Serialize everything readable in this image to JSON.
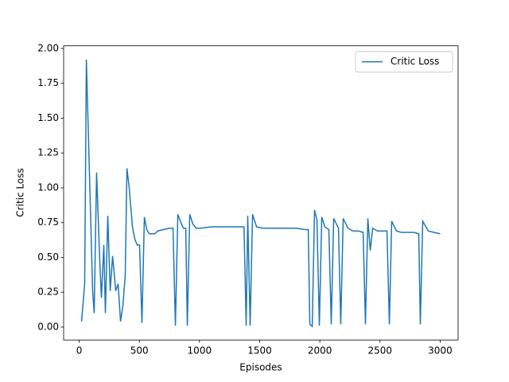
{
  "chart_data": {
    "type": "line",
    "xlabel": "Episodes",
    "ylabel": "Critic Loss",
    "x": [
      20,
      46,
      60,
      112,
      125,
      145,
      172,
      185,
      205,
      218,
      238,
      258,
      278,
      304,
      324,
      344,
      363,
      383,
      397,
      416,
      443,
      463,
      482,
      502,
      522,
      542,
      562,
      582,
      628,
      654,
      700,
      747,
      780,
      800,
      820,
      846,
      866,
      886,
      899,
      919,
      945,
      972,
      1011,
      1100,
      1200,
      1300,
      1370,
      1388,
      1401,
      1421,
      1441,
      1474,
      1527,
      1600,
      1700,
      1800,
      1877,
      1904,
      1917,
      1937,
      1956,
      1976,
      1996,
      2016,
      2042,
      2075,
      2095,
      2115,
      2155,
      2174,
      2194,
      2234,
      2274,
      2320,
      2360,
      2379,
      2399,
      2419,
      2439,
      2478,
      2558,
      2578,
      2597,
      2637,
      2677,
      2783,
      2822,
      2835,
      2855,
      2901,
      2948,
      3000
    ],
    "series": [
      {
        "name": "Critic Loss",
        "color": "#1f77b4",
        "values": [
          0.04,
          0.31,
          1.92,
          0.26,
          0.1,
          1.11,
          0.46,
          0.21,
          0.59,
          0.1,
          0.8,
          0.26,
          0.51,
          0.26,
          0.31,
          0.04,
          0.15,
          0.37,
          1.14,
          1.0,
          0.72,
          0.63,
          0.59,
          0.59,
          0.03,
          0.79,
          0.7,
          0.67,
          0.67,
          0.69,
          0.7,
          0.71,
          0.71,
          0.01,
          0.81,
          0.75,
          0.71,
          0.71,
          0.01,
          0.81,
          0.74,
          0.71,
          0.71,
          0.72,
          0.72,
          0.72,
          0.72,
          0.01,
          0.8,
          0.01,
          0.81,
          0.72,
          0.71,
          0.71,
          0.71,
          0.71,
          0.7,
          0.7,
          0.02,
          0.005,
          0.84,
          0.77,
          0.01,
          0.79,
          0.72,
          0.7,
          0.02,
          0.78,
          0.71,
          0.02,
          0.78,
          0.71,
          0.69,
          0.69,
          0.68,
          0.02,
          0.78,
          0.55,
          0.71,
          0.69,
          0.69,
          0.02,
          0.76,
          0.69,
          0.68,
          0.68,
          0.67,
          0.02,
          0.76,
          0.69,
          0.68,
          0.67
        ]
      }
    ],
    "xlim": [
      -129,
      3149
    ],
    "ylim": [
      -0.0926,
      2.019
    ],
    "xticks": [
      0,
      500,
      1000,
      1500,
      2000,
      2500,
      3000
    ],
    "yticks": [
      {
        "value": 0,
        "label": "0.00"
      },
      {
        "value": 0.25,
        "label": "0.25"
      },
      {
        "value": 0.5,
        "label": "0.50"
      },
      {
        "value": 0.75,
        "label": "0.75"
      },
      {
        "value": 1,
        "label": "1.00"
      },
      {
        "value": 1.25,
        "label": "1.25"
      },
      {
        "value": 1.5,
        "label": "1.50"
      },
      {
        "value": 1.75,
        "label": "1.75"
      },
      {
        "value": 2,
        "label": "2.00"
      }
    ],
    "legend": "upper right"
  }
}
